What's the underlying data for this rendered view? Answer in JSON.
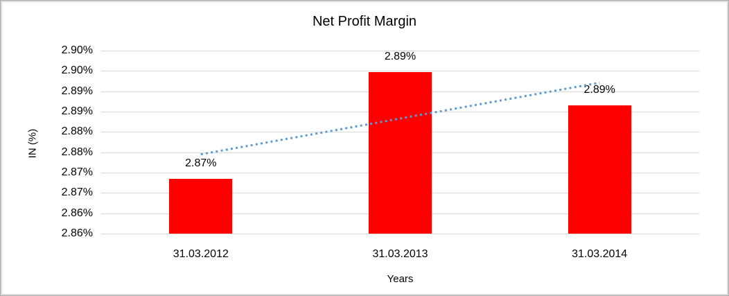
{
  "window": {
    "background": "#FFFFFF",
    "border_color": "#DBDBDB"
  },
  "chart_data": {
    "type": "bar",
    "title": "Net Profit Margin",
    "xlabel": "Years",
    "ylabel": "IN (%)",
    "categories": [
      "31.03.2012",
      "31.03.2013",
      "31.03.2014"
    ],
    "series": [
      {
        "name": "Net Profit Margin",
        "color": "#FF0000",
        "values": [
          2.8684,
          2.8948,
          2.8866
        ],
        "data_labels": [
          "2.87%",
          "2.89%",
          "2.89%"
        ]
      }
    ],
    "ylim": [
      2.855,
      2.9
    ],
    "ytick_step": 0.005,
    "ytick_labels_top_to_bottom": [
      "2.90%",
      "2.90%",
      "2.89%",
      "2.89%",
      "2.88%",
      "2.88%",
      "2.87%",
      "2.87%",
      "2.86%",
      "2.86%"
    ],
    "grid": true,
    "gridline_color": "#D9D9D9",
    "legend": "none",
    "trendline": {
      "type": "linear",
      "style": "dotted",
      "color": "#5B9BD5",
      "start_value": 2.8745,
      "end_value": 2.8921
    }
  }
}
